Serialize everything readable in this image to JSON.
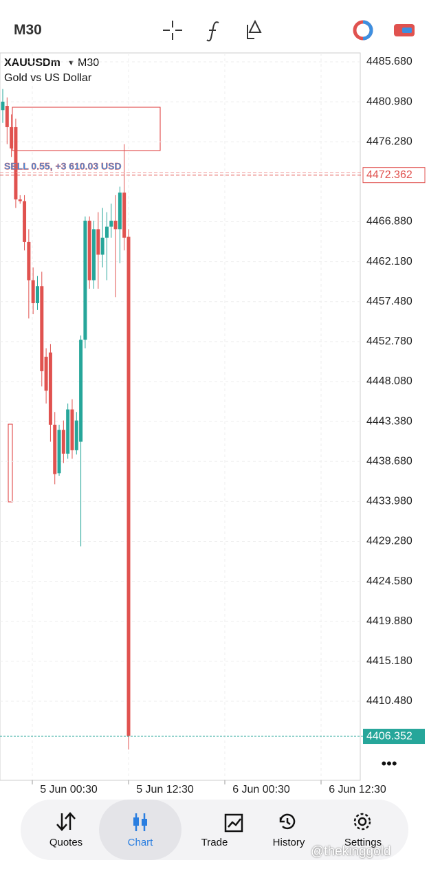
{
  "header": {
    "timeframe": "M30"
  },
  "chart_data": {
    "type": "candlestick",
    "symbol": "XAUUSDm",
    "timeframe": "M30",
    "description": "Gold vs US Dollar",
    "up_color": "#26a69a",
    "down_color": "#e0524f",
    "candles": [
      {
        "o": 4480.0,
        "h": 4482.5,
        "l": 4478.5,
        "c": 4481.0
      },
      {
        "o": 4480.5,
        "h": 4481.5,
        "l": 4476.0,
        "c": 4478.0
      },
      {
        "o": 4478.0,
        "h": 4479.5,
        "l": 4474.5,
        "c": 4475.5
      },
      {
        "o": 4478.0,
        "h": 4479.0,
        "l": 4468.5,
        "c": 4469.5
      },
      {
        "o": 4469.5,
        "h": 4470.0,
        "l": 4469.0,
        "c": 4469.3
      },
      {
        "o": 4469.3,
        "h": 4470.0,
        "l": 4463.5,
        "c": 4464.5
      },
      {
        "o": 4464.5,
        "h": 4466.0,
        "l": 4455.5,
        "c": 4460.0
      },
      {
        "o": 4460.0,
        "h": 4461.5,
        "l": 4456.0,
        "c": 4457.3
      },
      {
        "o": 4457.3,
        "h": 4460.5,
        "l": 4456.5,
        "c": 4459.3
      },
      {
        "o": 4459.3,
        "h": 4461.0,
        "l": 4447.5,
        "c": 4449.3
      },
      {
        "o": 4451.0,
        "h": 4452.0,
        "l": 4445.5,
        "c": 4447.0
      },
      {
        "o": 4451.5,
        "h": 4452.5,
        "l": 4441.0,
        "c": 4443.0
      },
      {
        "o": 4443.0,
        "h": 4444.5,
        "l": 4436.0,
        "c": 4437.2
      },
      {
        "o": 4437.3,
        "h": 4443.0,
        "l": 4437.0,
        "c": 4442.4
      },
      {
        "o": 4442.4,
        "h": 4443.5,
        "l": 4438.5,
        "c": 4439.6
      },
      {
        "o": 4439.6,
        "h": 4445.5,
        "l": 4439.0,
        "c": 4444.8
      },
      {
        "o": 4444.8,
        "h": 4446.0,
        "l": 4439.0,
        "c": 4440.0
      },
      {
        "o": 4440.0,
        "h": 4444.5,
        "l": 4439.5,
        "c": 4443.5
      },
      {
        "o": 4441.0,
        "h": 4453.5,
        "l": 4428.7,
        "c": 4453.0
      },
      {
        "o": 4453.0,
        "h": 4467.5,
        "l": 4452.0,
        "c": 4467.0
      },
      {
        "o": 4467.0,
        "h": 4467.5,
        "l": 4459.0,
        "c": 4460.0
      },
      {
        "o": 4460.0,
        "h": 4467.0,
        "l": 4459.0,
        "c": 4466.0
      },
      {
        "o": 4466.0,
        "h": 4468.0,
        "l": 4459.0,
        "c": 4463.0
      },
      {
        "o": 4463.0,
        "h": 4468.5,
        "l": 4461.5,
        "c": 4465.0
      },
      {
        "o": 4465.0,
        "h": 4468.0,
        "l": 4460.0,
        "c": 4466.3
      },
      {
        "o": 4466.3,
        "h": 4469.0,
        "l": 4465.0,
        "c": 4467.0
      },
      {
        "o": 4467.0,
        "h": 4470.0,
        "l": 4458.0,
        "c": 4466.0
      },
      {
        "o": 4466.0,
        "h": 4471.0,
        "l": 4462.0,
        "c": 4470.3
      },
      {
        "o": 4470.3,
        "h": 4476.0,
        "l": 4463.5,
        "c": 4465.0
      },
      {
        "o": 4465.1,
        "h": 4466.0,
        "l": 4404.8,
        "c": 4406.4
      }
    ],
    "ylim": [
      4401.18,
      4486.73
    ],
    "yticks": [
      {
        "value": 4485.68,
        "label": "4485.680"
      },
      {
        "value": 4480.98,
        "label": "4480.980"
      },
      {
        "value": 4476.28,
        "label": "4476.280"
      },
      {
        "value": 4466.88,
        "label": "4466.880"
      },
      {
        "value": 4462.18,
        "label": "4462.180"
      },
      {
        "value": 4457.48,
        "label": "4457.480"
      },
      {
        "value": 4452.78,
        "label": "4452.780"
      },
      {
        "value": 4448.08,
        "label": "4448.080"
      },
      {
        "value": 4443.38,
        "label": "4443.380"
      },
      {
        "value": 4438.68,
        "label": "4438.680"
      },
      {
        "value": 4433.98,
        "label": "4433.980"
      },
      {
        "value": 4429.28,
        "label": "4429.280"
      },
      {
        "value": 4424.58,
        "label": "4424.580"
      },
      {
        "value": 4419.88,
        "label": "4419.880"
      },
      {
        "value": 4415.18,
        "label": "4415.180"
      },
      {
        "value": 4410.48,
        "label": "4410.480"
      }
    ],
    "xlabels": [
      "5 Jun 00:30",
      "5 Jun 12:30",
      "6 Jun 00:30",
      "6 Jun 12:30"
    ],
    "position": {
      "label": "SELL 0.55, +3 610.03 USD",
      "price": 4472.362
    },
    "bid": 4406.352
  },
  "nav": [
    "Quotes",
    "Chart",
    "Trade",
    "History",
    "Settings"
  ],
  "watermark": "@thekinggold"
}
